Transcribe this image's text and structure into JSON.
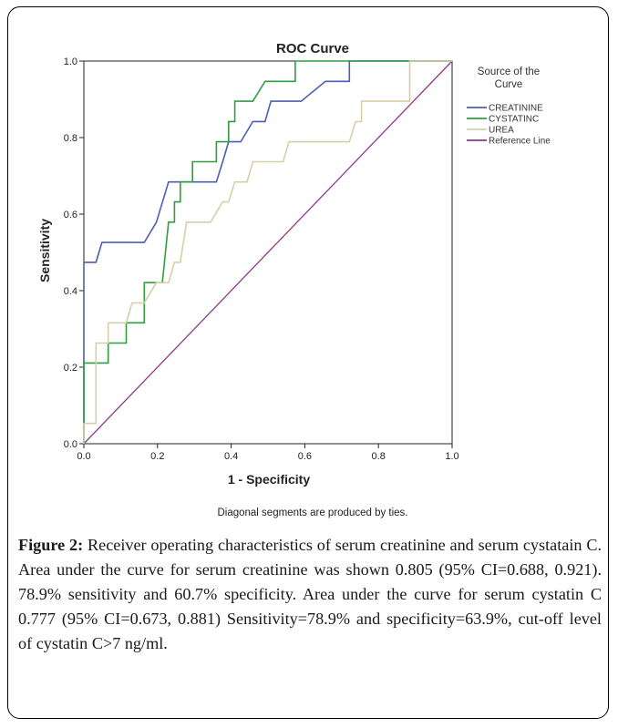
{
  "chart_data": {
    "type": "line",
    "title": "ROC Curve",
    "xlabel": "1 - Specificity",
    "ylabel": "Sensitivity",
    "xlim": [
      0.0,
      1.0
    ],
    "ylim": [
      0.0,
      1.0
    ],
    "x_ticks": [
      "0.0",
      "0.2",
      "0.4",
      "0.6",
      "0.8",
      "1.0"
    ],
    "y_ticks": [
      "0.0",
      "0.2",
      "0.4",
      "0.6",
      "0.8",
      "1.0"
    ],
    "grid": false,
    "legend_title": "Source of the Curve",
    "legend_position": "right",
    "footnote": "Diagonal segments are produced by ties.",
    "series": [
      {
        "name": "CREATININE",
        "color": "#4a5fb3",
        "points": [
          [
            0,
            0
          ],
          [
            0,
            0.474
          ],
          [
            0.033,
            0.474
          ],
          [
            0.049,
            0.526
          ],
          [
            0.164,
            0.526
          ],
          [
            0.197,
            0.579
          ],
          [
            0.23,
            0.684
          ],
          [
            0.36,
            0.684
          ],
          [
            0.377,
            0.737
          ],
          [
            0.393,
            0.789
          ],
          [
            0.426,
            0.789
          ],
          [
            0.459,
            0.842
          ],
          [
            0.492,
            0.842
          ],
          [
            0.508,
            0.895
          ],
          [
            0.574,
            0.895
          ],
          [
            0.59,
            0.895
          ],
          [
            0.656,
            0.947
          ],
          [
            0.721,
            0.947
          ],
          [
            0.721,
            1.0
          ],
          [
            1,
            1
          ]
        ]
      },
      {
        "name": "CYSTATINC",
        "color": "#2e9e3e",
        "points": [
          [
            0,
            0
          ],
          [
            0,
            0.211
          ],
          [
            0.066,
            0.211
          ],
          [
            0.066,
            0.263
          ],
          [
            0.115,
            0.263
          ],
          [
            0.115,
            0.316
          ],
          [
            0.164,
            0.316
          ],
          [
            0.164,
            0.421
          ],
          [
            0.213,
            0.421
          ],
          [
            0.23,
            0.579
          ],
          [
            0.246,
            0.579
          ],
          [
            0.246,
            0.632
          ],
          [
            0.262,
            0.632
          ],
          [
            0.262,
            0.684
          ],
          [
            0.295,
            0.684
          ],
          [
            0.295,
            0.737
          ],
          [
            0.36,
            0.737
          ],
          [
            0.36,
            0.789
          ],
          [
            0.393,
            0.789
          ],
          [
            0.393,
            0.842
          ],
          [
            0.41,
            0.842
          ],
          [
            0.41,
            0.895
          ],
          [
            0.459,
            0.895
          ],
          [
            0.492,
            0.947
          ],
          [
            0.574,
            0.947
          ],
          [
            0.574,
            1.0
          ],
          [
            1,
            1
          ]
        ]
      },
      {
        "name": "UREA",
        "color": "#d6cfa8",
        "points": [
          [
            0,
            0
          ],
          [
            0,
            0.053
          ],
          [
            0.033,
            0.053
          ],
          [
            0.033,
            0.263
          ],
          [
            0.066,
            0.263
          ],
          [
            0.066,
            0.316
          ],
          [
            0.115,
            0.316
          ],
          [
            0.131,
            0.368
          ],
          [
            0.164,
            0.368
          ],
          [
            0.197,
            0.421
          ],
          [
            0.23,
            0.421
          ],
          [
            0.246,
            0.474
          ],
          [
            0.262,
            0.474
          ],
          [
            0.279,
            0.579
          ],
          [
            0.344,
            0.579
          ],
          [
            0.377,
            0.632
          ],
          [
            0.393,
            0.632
          ],
          [
            0.41,
            0.684
          ],
          [
            0.443,
            0.684
          ],
          [
            0.459,
            0.737
          ],
          [
            0.541,
            0.737
          ],
          [
            0.557,
            0.789
          ],
          [
            0.721,
            0.789
          ],
          [
            0.738,
            0.842
          ],
          [
            0.754,
            0.842
          ],
          [
            0.754,
            0.895
          ],
          [
            0.885,
            0.895
          ],
          [
            0.885,
            1.0
          ],
          [
            1,
            1
          ]
        ]
      },
      {
        "name": "Reference Line",
        "color": "#8b3a8b",
        "points": [
          [
            0,
            0
          ],
          [
            1,
            1
          ]
        ]
      }
    ]
  },
  "caption": {
    "label": "Figure 2:",
    "text": " Receiver operating characteristics of serum creatinine and serum cystatain C. Area under the curve for serum creatinine was shown 0.805 (95% CI=0.688, 0.921). 78.9% sensitivity and 60.7% specificity. Area under the curve for serum cystatin C 0.777 (95% CI=0.673, 0.881) Sensitivity=78.9% and specificity=63.9%, cut-off level of cystatin C>7 ng/ml."
  }
}
